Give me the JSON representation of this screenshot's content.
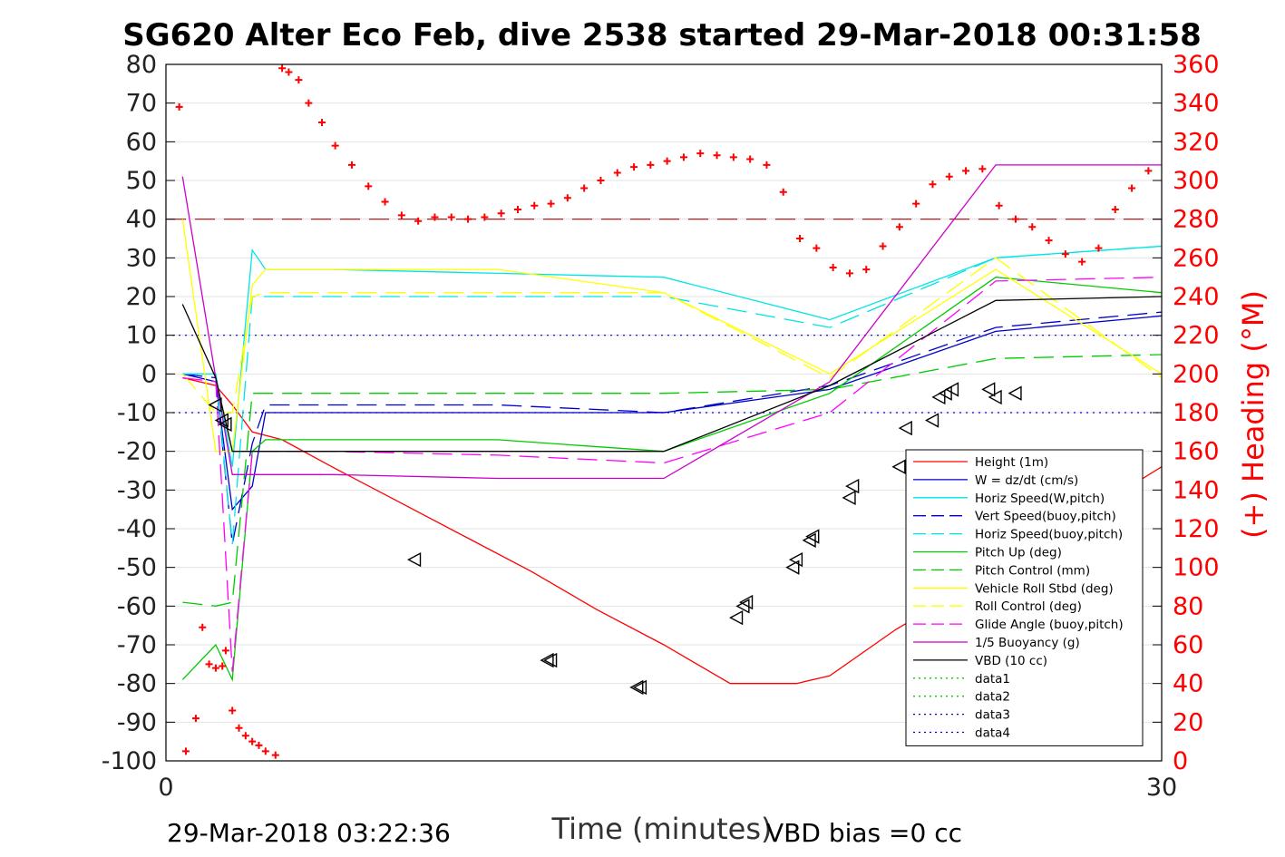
{
  "chart_data": {
    "type": "line",
    "title": "SG620 Alter Eco Feb, dive 2538 started 29-Mar-2018 00:31:58",
    "xlabel": "Time (minutes)",
    "ylabel_right": "(+) Heading (°M)",
    "xlim": [
      0,
      30
    ],
    "ylim": [
      -100,
      80
    ],
    "y2lim": [
      0,
      360
    ],
    "xticks": [
      "0",
      "30"
    ],
    "yticks": [
      "80",
      "70",
      "60",
      "50",
      "40",
      "30",
      "20",
      "10",
      "0",
      "-10",
      "-20",
      "-30",
      "-40",
      "-50",
      "-60",
      "-70",
      "-80",
      "-90",
      "-100"
    ],
    "y2ticks": [
      "360",
      "340",
      "320",
      "300",
      "280",
      "260",
      "240",
      "220",
      "200",
      "180",
      "160",
      "140",
      "120",
      "100",
      "80",
      "60",
      "40",
      "20",
      "0"
    ],
    "grid": true,
    "legend_position": "bottom-right",
    "footer_left": "29-Mar-2018 03:22:36",
    "footer_right": "VBD bias =0 cc",
    "series": [
      {
        "name": "Height (1m)",
        "color": "#ff0000",
        "dash": "solid",
        "x": [
          0.5,
          1.5,
          2.0,
          2.6,
          3.5,
          5,
          7,
          9,
          11,
          13,
          15,
          17,
          19,
          20,
          22,
          24,
          27,
          30
        ],
        "y": [
          -1,
          -3,
          -8,
          -15,
          -17,
          -24,
          -33,
          -42,
          -51,
          -61,
          -70,
          -80,
          -80,
          -78,
          -66,
          -56,
          -40,
          -24
        ]
      },
      {
        "name": "W = dz/dt (cm/s)",
        "color": "#0000cc",
        "dash": "solid",
        "x": [
          0.5,
          1.5,
          2.0,
          2.6,
          3.0,
          5,
          10,
          15,
          20,
          25,
          30
        ],
        "y": [
          0,
          -2,
          -35,
          -29,
          -10,
          -10,
          -10,
          -10,
          -4,
          11,
          15
        ]
      },
      {
        "name": "Horiz Speed(W,pitch)",
        "color": "#00e5e5",
        "dash": "solid",
        "x": [
          0.5,
          1.5,
          2.0,
          2.6,
          3.0,
          5,
          10,
          15,
          20,
          25,
          30
        ],
        "y": [
          0,
          0,
          -24,
          32,
          27,
          27,
          26,
          25,
          14,
          30,
          33
        ]
      },
      {
        "name": "Vert Speed(buoy,pitch)",
        "color": "#0000cc",
        "dash": "dashed",
        "x": [
          0.5,
          1.5,
          2.0,
          2.6,
          3.0,
          5,
          10,
          15,
          20,
          25,
          30
        ],
        "y": [
          0,
          -1,
          -44,
          -18,
          -8,
          -8,
          -8,
          -10,
          -3,
          12,
          16
        ]
      },
      {
        "name": "Horiz Speed(buoy,pitch)",
        "color": "#00e5e5",
        "dash": "dashed",
        "x": [
          0.5,
          1.5,
          2.0,
          2.6,
          3.0,
          5,
          10,
          15,
          20,
          25,
          30
        ],
        "y": [
          0,
          0,
          -44,
          20,
          20,
          20,
          20,
          20,
          12,
          30,
          33
        ]
      },
      {
        "name": "Pitch Up (deg)",
        "color": "#00cc00",
        "dash": "solid",
        "x": [
          0.5,
          1.5,
          2.0,
          2.6,
          3.0,
          5,
          10,
          15,
          20,
          25,
          30
        ],
        "y": [
          -79,
          -70,
          -79,
          -20,
          -17,
          -17,
          -17,
          -20,
          -5,
          25,
          21
        ]
      },
      {
        "name": "Pitch Control (mm)",
        "color": "#00cc00",
        "dash": "dashed",
        "x": [
          0.5,
          1.5,
          2.0,
          2.6,
          3.0,
          5,
          10,
          15,
          20,
          25,
          30
        ],
        "y": [
          -59,
          -60,
          -59,
          -5,
          -5,
          -5,
          -5,
          -5,
          -4,
          4,
          5
        ]
      },
      {
        "name": "Vehicle Roll Stbd (deg)",
        "color": "#ffff00",
        "dash": "solid",
        "x": [
          0.5,
          1.5,
          2.0,
          2.6,
          3.0,
          5,
          10,
          15,
          20,
          25,
          30
        ],
        "y": [
          40,
          -20,
          -20,
          23,
          27,
          27,
          27,
          21,
          0,
          27,
          0
        ]
      },
      {
        "name": "Roll Control (deg)",
        "color": "#ffff00",
        "dash": "dashed",
        "x": [
          0.5,
          1.5,
          2.0,
          2.6,
          3.0,
          5,
          10,
          15,
          20,
          25,
          30
        ],
        "y": [
          0,
          -10,
          -10,
          20,
          21,
          21,
          21,
          21,
          -1,
          30,
          -1
        ]
      },
      {
        "name": "Glide Angle (buoy,pitch)",
        "color": "#ff00ff",
        "dash": "dashed",
        "x": [
          0.5,
          1.5,
          2.0,
          2.6,
          3.0,
          5,
          10,
          15,
          20,
          25,
          30
        ],
        "y": [
          -1,
          -2,
          -77,
          -20,
          -20,
          -20,
          -21,
          -23,
          -10,
          24,
          25
        ]
      },
      {
        "name": "1/5 Buoyancy (g)",
        "color": "#cc00cc",
        "dash": "solid",
        "x": [
          0.5,
          1.5,
          2.0,
          2.6,
          3.0,
          5,
          10,
          15,
          20,
          25,
          30
        ],
        "y": [
          51,
          -1,
          -26,
          -26,
          -26,
          -26,
          -27,
          -27,
          -2,
          54,
          54
        ]
      },
      {
        "name": "VBD (10 cc)",
        "color": "#000000",
        "dash": "solid",
        "x": [
          0.5,
          1.5,
          2.0,
          2.6,
          3.0,
          5,
          10,
          15,
          20,
          25,
          30
        ],
        "y": [
          18,
          -1,
          -20,
          -20,
          -20,
          -20,
          -20,
          -20,
          -3,
          19,
          20
        ]
      },
      {
        "name": "data1",
        "color": "#00cc00",
        "dash": "dotted",
        "x": [],
        "y": []
      },
      {
        "name": "data2",
        "color": "#00cc00",
        "dash": "dotted",
        "x": [],
        "y": []
      },
      {
        "name": "data3",
        "color": "#0000cc",
        "dash": "dotted",
        "x": [],
        "y": []
      },
      {
        "name": "data4",
        "color": "#0000cc",
        "dash": "dotted",
        "x": [],
        "y": []
      }
    ],
    "reference_lines": [
      {
        "axis": "y",
        "value": 10,
        "color": "#0000cc",
        "dash": "dotted"
      },
      {
        "axis": "y",
        "value": -10,
        "color": "#0000cc",
        "dash": "dotted"
      },
      {
        "axis": "y2",
        "value": 280,
        "color": "#aa0000",
        "dash": "dashed"
      }
    ],
    "heading_points": {
      "color": "#ff0000",
      "x": [
        0.4,
        0.6,
        0.9,
        1.1,
        1.3,
        1.5,
        1.7,
        1.8,
        2.0,
        2.2,
        2.4,
        2.6,
        2.8,
        3.0,
        3.3,
        3.5,
        3.7,
        4.0,
        4.3,
        4.7,
        5.1,
        5.6,
        6.1,
        6.6,
        7.1,
        7.6,
        8.1,
        8.6,
        9.1,
        9.6,
        10.1,
        10.6,
        11.1,
        11.6,
        12.1,
        12.6,
        13.1,
        13.6,
        14.1,
        14.6,
        15.1,
        15.6,
        16.1,
        16.6,
        17.1,
        17.6,
        18.1,
        18.6,
        19.1,
        19.6,
        20.1,
        20.6,
        21.1,
        21.6,
        22.1,
        22.6,
        23.1,
        23.6,
        24.1,
        24.6,
        25.1,
        25.6,
        26.1,
        26.6,
        27.1,
        27.6,
        28.1,
        28.6,
        29.1,
        29.6
      ],
      "y": [
        338,
        5,
        22,
        69,
        50,
        48,
        49,
        57,
        26,
        17,
        13,
        10,
        8,
        5,
        3,
        358,
        356,
        352,
        340,
        330,
        318,
        308,
        297,
        289,
        282,
        279,
        281,
        281,
        280,
        281,
        283,
        285,
        287,
        288,
        291,
        296,
        300,
        304,
        307,
        308,
        310,
        312,
        314,
        313,
        312,
        311,
        308,
        294,
        270,
        265,
        255,
        252,
        254,
        266,
        276,
        288,
        298,
        302,
        305,
        306,
        287,
        280,
        276,
        269,
        262,
        258,
        265,
        285,
        296,
        305
      ]
    },
    "markers": {
      "shape": "triangle-left",
      "x": [
        1.5,
        1.7,
        1.8,
        7.5,
        11.5,
        11.6,
        14.2,
        14.3,
        17.2,
        17.4,
        17.5,
        18.9,
        19.0,
        19.4,
        19.5,
        20.6,
        20.7,
        22.1,
        22.3,
        23.1,
        23.3,
        23.5,
        23.7,
        24.8,
        25.0,
        25.6
      ],
      "y": [
        -8,
        -12,
        -13,
        -48,
        -74,
        -74,
        -81,
        -81,
        -63,
        -60,
        -59,
        -50,
        -48,
        -43,
        -42,
        -32,
        -29,
        -24,
        -14,
        -12,
        -6,
        -5,
        -4,
        -4,
        -6,
        -5
      ]
    }
  }
}
